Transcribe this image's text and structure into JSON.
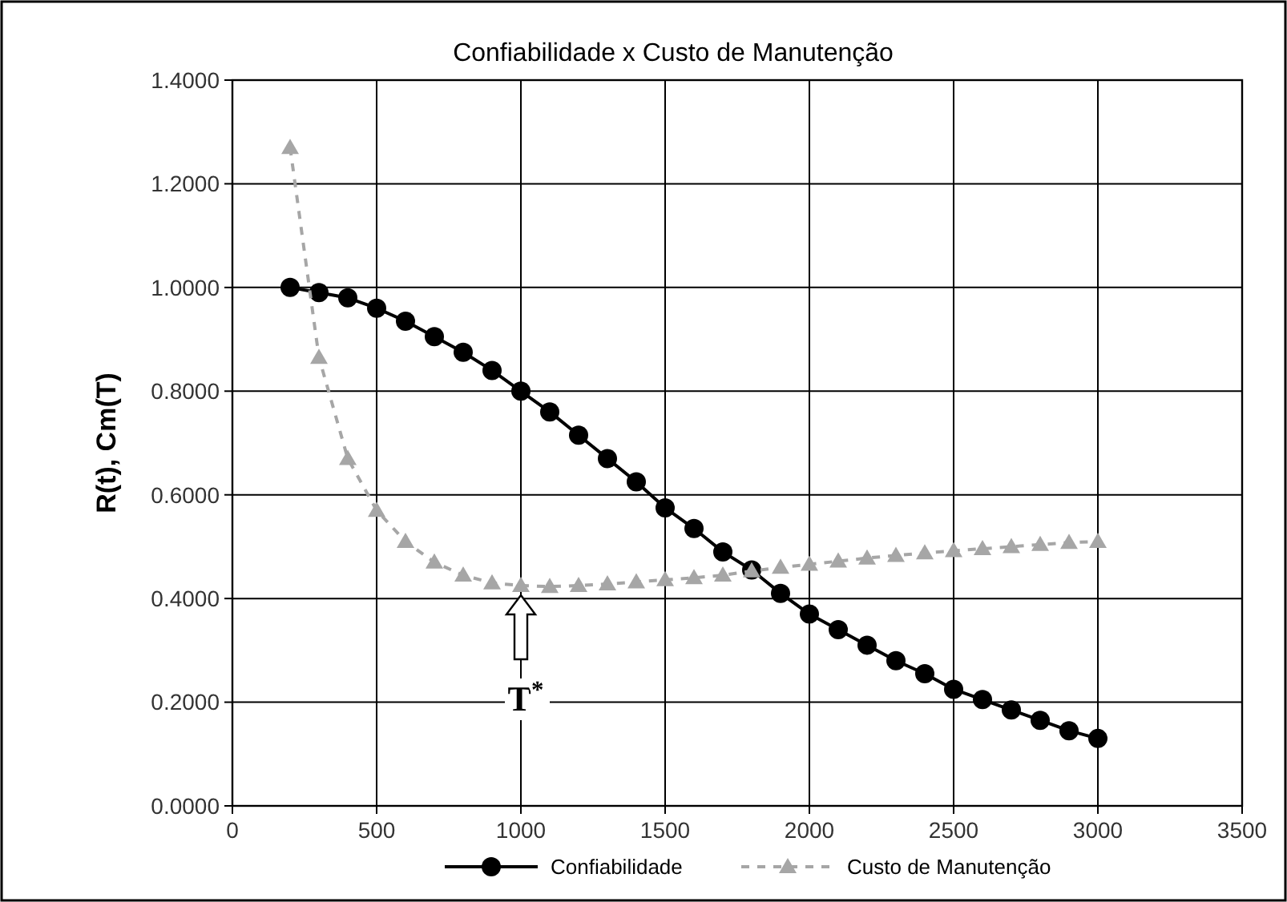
{
  "chart_data": {
    "type": "line",
    "title": "Confiabilidade x Custo de Manutenção",
    "ylabel": "R(t), Cm(T)",
    "x": [
      200,
      300,
      400,
      500,
      600,
      700,
      800,
      900,
      1000,
      1100,
      1200,
      1300,
      1400,
      1500,
      1600,
      1700,
      1800,
      1900,
      2000,
      2100,
      2200,
      2300,
      2400,
      2500,
      2600,
      2700,
      2800,
      2900,
      3000
    ],
    "series": [
      {
        "name": "Confiabilidade",
        "color": "#000000",
        "marker": "circle",
        "line_style": "solid",
        "values": [
          1.0,
          0.99,
          0.98,
          0.96,
          0.935,
          0.905,
          0.875,
          0.84,
          0.8,
          0.76,
          0.715,
          0.67,
          0.625,
          0.575,
          0.535,
          0.49,
          0.455,
          0.41,
          0.37,
          0.34,
          0.31,
          0.28,
          0.255,
          0.225,
          0.205,
          0.185,
          0.165,
          0.145,
          0.13
        ]
      },
      {
        "name": "Custo de Manutenção",
        "color": "#a6a6a6",
        "marker": "triangle",
        "line_style": "dashed",
        "values": [
          1.27,
          0.865,
          0.67,
          0.57,
          0.51,
          0.47,
          0.445,
          0.43,
          0.425,
          0.423,
          0.425,
          0.428,
          0.432,
          0.436,
          0.44,
          0.445,
          0.453,
          0.46,
          0.466,
          0.472,
          0.478,
          0.483,
          0.488,
          0.492,
          0.496,
          0.5,
          0.504,
          0.508,
          0.51
        ]
      }
    ],
    "xlim": [
      0,
      3500
    ],
    "xticks": [
      0,
      500,
      1000,
      1500,
      2000,
      2500,
      3000,
      3500
    ],
    "ylim": [
      0,
      1.4
    ],
    "yticks": [
      {
        "value": 0,
        "label": "0.0000"
      },
      {
        "value": 0.2,
        "label": "0.2000"
      },
      {
        "value": 0.4,
        "label": "0.4000"
      },
      {
        "value": 0.6,
        "label": "0.6000"
      },
      {
        "value": 0.8,
        "label": "0.8000"
      },
      {
        "value": 1.0,
        "label": "1.0000"
      },
      {
        "value": 1.2,
        "label": "1.2000"
      },
      {
        "value": 1.4,
        "label": "1.4000"
      }
    ],
    "grid": true,
    "legend": "bottom",
    "annotations": [
      {
        "text": "T$^{*}$",
        "x": 1000,
        "y": 0.425
      }
    ]
  }
}
